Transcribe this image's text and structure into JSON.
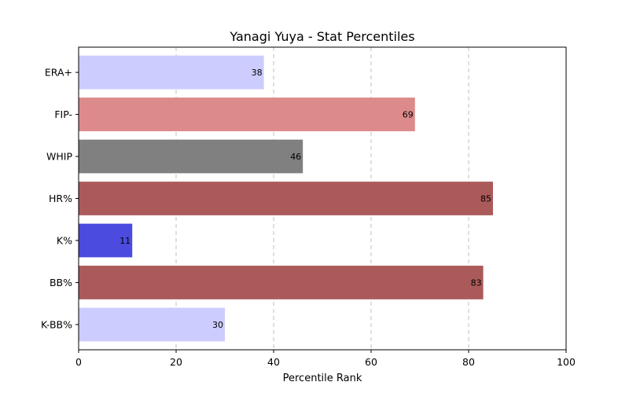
{
  "chart_data": {
    "type": "bar",
    "orientation": "horizontal",
    "title": "Yanagi Yuya - Stat Percentiles",
    "xlabel": "Percentile Rank",
    "ylabel": "",
    "xlim": [
      0,
      100
    ],
    "xticks": [
      0,
      20,
      40,
      60,
      80,
      100
    ],
    "grid": "x-dashed",
    "categories": [
      "ERA+",
      "FIP-",
      "WHIP",
      "HR%",
      "K%",
      "BB%",
      "K-BB%"
    ],
    "values": [
      38,
      69,
      46,
      85,
      11,
      83,
      30
    ],
    "colors": [
      "#ccccff",
      "#dc8a8a",
      "#808080",
      "#ab5a5a",
      "#4b4bdf",
      "#ab5a5a",
      "#ccccff"
    ]
  }
}
